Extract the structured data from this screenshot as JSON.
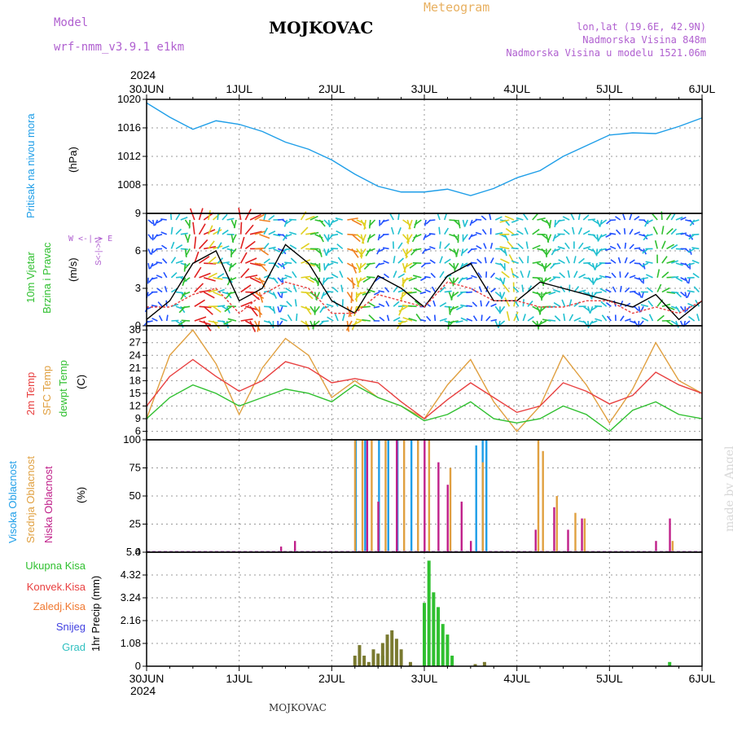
{
  "header": {
    "model_label": "Model",
    "model_run": "wrf-nmm_v3.9.1  e1km",
    "title": "MOJKOVAC",
    "meteogram_label": "Meteogram",
    "lonlat": "lon,lat (19.6E, 42.9N)",
    "elevation": "Nadmorska Visina 848m",
    "model_elevation": "Nadmorska Visina u modelu 1521.06m"
  },
  "time_axis": {
    "year": "2024",
    "labels": [
      "30JUN",
      "1JUL",
      "2JUL",
      "3JUL",
      "4JUL",
      "5JUL",
      "6JUL"
    ]
  },
  "footer": {
    "station": "MOJKOVAC",
    "credit": "made by Angel"
  },
  "panels": {
    "pressure": {
      "label": "Pritisak na nivou mora",
      "unit": "(hPa)"
    },
    "wind": {
      "label1": "10m Vjetar",
      "label2": "Brzina i Pravac",
      "unit": "(m/s)",
      "compass": "W <-|-> E",
      "compass_ns": "S<-|->N"
    },
    "temp": {
      "label1": "2m Temp",
      "label2": "SFC Temp",
      "label3": "dewpt Temp",
      "unit": "(C)"
    },
    "cloud": {
      "label1": "Visoka Oblacnost",
      "label2": "Srednja Oblacnost",
      "label3": "Niska Oblacnost",
      "unit": "(%)"
    },
    "precip": {
      "unit": "1hr Precip (mm)",
      "legend": [
        "Ukupna Kisa",
        "Konvek.Kisa",
        "Zaledj.Kisa",
        "Snijeg",
        "Grad"
      ]
    }
  },
  "colors": {
    "pressure": "#1e9ee8",
    "temp2m": "#e84040",
    "sfc": "#e0a040",
    "dew": "#30c030",
    "high": "#1e9ee8",
    "mid": "#e0a040",
    "low": "#c0208a",
    "total": "#30c030",
    "conv": "#e84040",
    "frz": "#f07830",
    "snow": "#4040e0",
    "hail": "#30c0c0"
  },
  "chart_data": [
    {
      "type": "line",
      "name": "pressure",
      "x": [
        0,
        0.25,
        0.5,
        0.75,
        1,
        1.25,
        1.5,
        1.75,
        2,
        2.25,
        2.5,
        2.75,
        3,
        3.25,
        3.5,
        3.75,
        4,
        4.25,
        4.5,
        4.75,
        5,
        5.25,
        5.5,
        5.75,
        6
      ],
      "series": [
        {
          "values": [
            1019.5,
            1017.5,
            1015.8,
            1017,
            1016.5,
            1015.5,
            1014,
            1013,
            1011.5,
            1009.5,
            1007.8,
            1007,
            1007,
            1007.4,
            1006.5,
            1007.5,
            1009,
            1010,
            1012,
            1013.5,
            1015,
            1015.3,
            1015.2,
            1016.2,
            1017.4
          ]
        }
      ],
      "ylabel": "(hPa)",
      "ylim": [
        1004,
        1020
      ],
      "yticks": [
        1008,
        1012,
        1016,
        1020
      ],
      "grid": true
    },
    {
      "type": "line",
      "name": "wind",
      "x": [
        0,
        0.25,
        0.5,
        0.75,
        1,
        1.25,
        1.5,
        1.75,
        2,
        2.25,
        2.5,
        2.75,
        3,
        3.25,
        3.5,
        3.75,
        4,
        4.25,
        4.5,
        4.75,
        5,
        5.25,
        5.5,
        5.75,
        6
      ],
      "series": [
        {
          "values": [
            0.5,
            2,
            5,
            6,
            2,
            3,
            6.5,
            5,
            2,
            1,
            4,
            3,
            1.5,
            4,
            5,
            2,
            2,
            3.5,
            3,
            2.5,
            2,
            1.5,
            2.5,
            0.5,
            2
          ]
        },
        {
          "values": [
            1.5,
            1.5,
            2.5,
            3,
            1,
            2.5,
            3.5,
            3,
            1,
            1,
            2.5,
            2,
            1.5,
            3.5,
            3,
            2,
            2,
            1.5,
            1.5,
            2,
            2,
            1,
            1.5,
            1,
            2
          ]
        }
      ],
      "ylabel": "(m/s)",
      "ylim": [
        0,
        9
      ],
      "yticks": [
        0,
        3,
        6,
        9
      ],
      "grid": true
    },
    {
      "type": "line",
      "name": "temperature",
      "x": [
        0,
        0.25,
        0.5,
        0.75,
        1,
        1.25,
        1.5,
        1.75,
        2,
        2.25,
        2.5,
        2.75,
        3,
        3.25,
        3.5,
        3.75,
        4,
        4.25,
        4.5,
        4.75,
        5,
        5.25,
        5.5,
        5.75,
        6
      ],
      "series": [
        {
          "values": [
            12,
            19,
            23,
            19,
            15.5,
            18,
            22.5,
            21,
            17.5,
            18.5,
            17.5,
            13,
            9,
            13.5,
            17.5,
            14,
            10.5,
            12,
            17.5,
            15.5,
            12.5,
            14.5,
            20,
            17,
            15
          ]
        },
        {
          "values": [
            9,
            24,
            30,
            22,
            10,
            21,
            28,
            24,
            14,
            18,
            14,
            12,
            9,
            17,
            23,
            13,
            6,
            12,
            24,
            17,
            8,
            16,
            27,
            18,
            15
          ]
        },
        {
          "values": [
            9,
            14,
            17,
            15,
            12,
            14,
            16,
            15,
            13,
            17,
            14,
            12,
            8.5,
            10,
            13,
            9,
            8,
            9,
            12,
            10,
            6,
            11,
            13,
            10,
            9
          ]
        }
      ],
      "ylabel": "(C)",
      "ylim": [
        4,
        31
      ],
      "yticks": [
        6,
        9,
        12,
        15,
        18,
        21,
        24,
        27,
        30
      ],
      "grid": true
    },
    {
      "type": "bar",
      "name": "cloud_cover",
      "series": [
        {
          "values": [
            [
              2.25,
              100
            ],
            [
              2.35,
              100
            ],
            [
              2.5,
              100
            ],
            [
              2.6,
              100
            ],
            [
              2.7,
              100
            ],
            [
              2.85,
              100
            ],
            [
              3.55,
              95
            ],
            [
              3.62,
              100
            ],
            [
              3.66,
              100
            ]
          ]
        },
        {
          "values": [
            [
              2.22,
              100
            ],
            [
              2.3,
              100
            ],
            [
              2.4,
              100
            ],
            [
              2.55,
              100
            ],
            [
              2.75,
              100
            ],
            [
              2.9,
              100
            ],
            [
              3.02,
              100
            ],
            [
              3.25,
              75
            ],
            [
              3.6,
              80
            ],
            [
              4.2,
              100
            ],
            [
              4.25,
              90
            ],
            [
              4.4,
              50
            ],
            [
              4.6,
              35
            ],
            [
              4.7,
              30
            ],
            [
              5.65,
              10
            ]
          ]
        },
        {
          "values": [
            [
              1.4,
              5
            ],
            [
              1.55,
              10
            ],
            [
              2.33,
              100
            ],
            [
              2.45,
              45
            ],
            [
              2.65,
              100
            ],
            [
              2.95,
              100
            ],
            [
              3.1,
              80
            ],
            [
              3.2,
              60
            ],
            [
              3.35,
              45
            ],
            [
              3.45,
              10
            ],
            [
              4.15,
              20
            ],
            [
              4.35,
              40
            ],
            [
              4.5,
              20
            ],
            [
              4.65,
              30
            ],
            [
              5.45,
              10
            ],
            [
              5.6,
              30
            ]
          ]
        }
      ],
      "ylabel": "(%)",
      "ylim": [
        0,
        100
      ],
      "yticks": [
        0,
        25,
        50,
        75,
        100
      ],
      "grid": true
    },
    {
      "type": "bar",
      "name": "precipitation",
      "series": [
        {
          "values": [
            [
              2.55,
              0.5
            ],
            [
              3.0,
              3.0
            ],
            [
              3.05,
              5.0
            ],
            [
              3.1,
              3.5
            ],
            [
              3.15,
              2.8
            ],
            [
              3.2,
              2.0
            ],
            [
              3.25,
              1.5
            ],
            [
              3.3,
              0.5
            ],
            [
              5.65,
              0.2
            ]
          ]
        },
        {
          "values": [
            [
              2.25,
              0.5
            ],
            [
              2.3,
              1.0
            ],
            [
              2.35,
              0.5
            ],
            [
              2.4,
              0.2
            ],
            [
              2.45,
              0.8
            ],
            [
              2.5,
              0.6
            ],
            [
              2.55,
              1.1
            ],
            [
              2.6,
              1.5
            ],
            [
              2.65,
              1.7
            ],
            [
              2.7,
              1.3
            ],
            [
              2.75,
              0.8
            ],
            [
              2.85,
              0.2
            ],
            [
              3.55,
              0.1
            ],
            [
              3.65,
              0.2
            ]
          ]
        }
      ],
      "ylabel": "1hr Precip (mm)",
      "ylim": [
        0,
        5.4
      ],
      "yticks": [
        0,
        1.08,
        2.16,
        3.24,
        4.32,
        5.4
      ],
      "grid": true
    }
  ]
}
